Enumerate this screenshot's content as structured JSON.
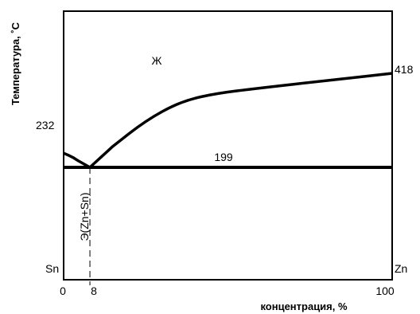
{
  "chart_data": {
    "type": "line",
    "title": "",
    "ylabel": "Температура, ˚С",
    "xlabel": "концентрация, %",
    "xlim": [
      0,
      100
    ],
    "ylim": [
      0,
      500
    ],
    "grid": false,
    "x_ticks": [
      {
        "value": 0,
        "label": "0"
      },
      {
        "value": 8,
        "label": "8"
      },
      {
        "value": 100,
        "label": "100"
      }
    ],
    "components": {
      "left": "Sn",
      "right": "Zn"
    },
    "liquidus": [
      {
        "x": 0,
        "y": 232
      },
      {
        "x": 3,
        "y": 222
      },
      {
        "x": 6,
        "y": 206
      },
      {
        "x": 8,
        "y": 199
      },
      {
        "x": 15,
        "y": 248
      },
      {
        "x": 25,
        "y": 308
      },
      {
        "x": 35,
        "y": 350
      },
      {
        "x": 45,
        "y": 370
      },
      {
        "x": 60,
        "y": 384
      },
      {
        "x": 80,
        "y": 401
      },
      {
        "x": 100,
        "y": 418
      }
    ],
    "eutectic_temperature": 199,
    "eutectic_composition": 8,
    "annotations": {
      "melt_point_sn": "232",
      "melt_point_zn": "418",
      "eutectic_line": "199",
      "liquid_region": "Ж",
      "eutectic_phase": "Э(Zn+Sn)"
    }
  }
}
